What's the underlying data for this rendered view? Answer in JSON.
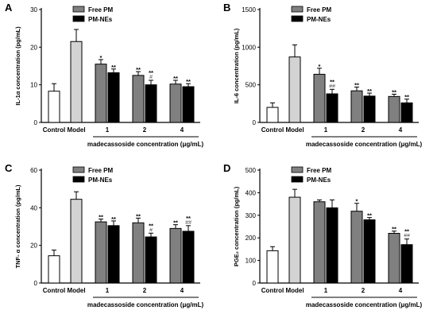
{
  "figure": {
    "background": "#ffffff"
  },
  "colors": {
    "control": "#ffffff",
    "model": "#d3d3d3",
    "free_pm": "#808080",
    "pm_nes": "#000000",
    "axis": "#000000",
    "hash": "#555555"
  },
  "legend": {
    "items": [
      "Free PM",
      "PM-NEs"
    ],
    "placement": "top-left"
  },
  "chart_data": [
    {
      "panel": "A",
      "type": "bar",
      "ylabel": "IL-1α concentration (pg/mL)",
      "xlabel": "madecassoside concentration (μg/mL)",
      "ylim": [
        0,
        30
      ],
      "yticks": [
        0,
        10,
        20,
        30
      ],
      "single": [
        {
          "label": "Control",
          "value": 8.3,
          "err": 2.0,
          "fill": "control"
        },
        {
          "label": "Model",
          "value": 21.5,
          "err": 3.2,
          "fill": "model"
        }
      ],
      "groups": [
        {
          "label": "1",
          "series": [
            {
              "name": "Free PM",
              "value": 15.5,
              "err": 1.2,
              "sig": "*",
              "hash": ""
            },
            {
              "name": "PM-NEs",
              "value": 13.2,
              "err": 1.0,
              "sig": "**",
              "hash": ""
            }
          ]
        },
        {
          "label": "2",
          "series": [
            {
              "name": "Free PM",
              "value": 12.5,
              "err": 1.0,
              "sig": "**",
              "hash": ""
            },
            {
              "name": "PM-NEs",
              "value": 10.0,
              "err": 1.2,
              "sig": "**",
              "hash": "#"
            }
          ]
        },
        {
          "label": "4",
          "series": [
            {
              "name": "Free PM",
              "value": 10.2,
              "err": 1.0,
              "sig": "**",
              "hash": ""
            },
            {
              "name": "PM-NEs",
              "value": 9.5,
              "err": 0.8,
              "sig": "**",
              "hash": ""
            }
          ]
        }
      ]
    },
    {
      "panel": "B",
      "type": "bar",
      "ylabel": "IL-6 concentration (pg/mL)",
      "xlabel": "madecassoside concentration (μg/mL)",
      "ylim": [
        0,
        1500
      ],
      "yticks": [
        0,
        500,
        1000,
        1500
      ],
      "single": [
        {
          "label": "Control",
          "value": 200,
          "err": 60,
          "fill": "control"
        },
        {
          "label": "Model",
          "value": 870,
          "err": 160,
          "fill": "model"
        }
      ],
      "groups": [
        {
          "label": "1",
          "series": [
            {
              "name": "Free PM",
              "value": 640,
              "err": 80,
              "sig": "*",
              "hash": ""
            },
            {
              "name": "PM-NEs",
              "value": 380,
              "err": 60,
              "sig": "**",
              "hash": "##"
            }
          ]
        },
        {
          "label": "2",
          "series": [
            {
              "name": "Free PM",
              "value": 420,
              "err": 50,
              "sig": "**",
              "hash": ""
            },
            {
              "name": "PM-NEs",
              "value": 350,
              "err": 40,
              "sig": "**",
              "hash": ""
            }
          ]
        },
        {
          "label": "4",
          "series": [
            {
              "name": "Free PM",
              "value": 345,
              "err": 30,
              "sig": "**",
              "hash": ""
            },
            {
              "name": "PM-NEs",
              "value": 260,
              "err": 50,
              "sig": "**",
              "hash": ""
            }
          ]
        }
      ]
    },
    {
      "panel": "C",
      "type": "bar",
      "ylabel": "TNF- α concentration (pg/mL)",
      "xlabel": "madecassoside concentration (μg/mL)",
      "ylim": [
        0,
        60
      ],
      "yticks": [
        0,
        20,
        40,
        60
      ],
      "single": [
        {
          "label": "Control",
          "value": 14.5,
          "err": 3.0,
          "fill": "control"
        },
        {
          "label": "Model",
          "value": 44.5,
          "err": 4.0,
          "fill": "model"
        }
      ],
      "groups": [
        {
          "label": "1",
          "series": [
            {
              "name": "Free PM",
              "value": 32.5,
              "err": 1.5,
              "sig": "**",
              "hash": ""
            },
            {
              "name": "PM-NEs",
              "value": 30.5,
              "err": 2.5,
              "sig": "**",
              "hash": ""
            }
          ]
        },
        {
          "label": "2",
          "series": [
            {
              "name": "Free PM",
              "value": 32.0,
              "err": 2.5,
              "sig": "**",
              "hash": ""
            },
            {
              "name": "PM-NEs",
              "value": 24.5,
              "err": 2.0,
              "sig": "**",
              "hash": "#"
            }
          ]
        },
        {
          "label": "4",
          "series": [
            {
              "name": "Free PM",
              "value": 29.0,
              "err": 2.0,
              "sig": "**",
              "hash": ""
            },
            {
              "name": "PM-NEs",
              "value": 27.5,
              "err": 3.0,
              "sig": "**",
              "hash": "##"
            }
          ]
        }
      ]
    },
    {
      "panel": "D",
      "type": "bar",
      "ylabel": "PGE₂ concentration (pg/mL)",
      "xlabel": "madecassoside concentration (μg/mL)",
      "ylim": [
        0,
        500
      ],
      "yticks": [
        0,
        100,
        200,
        300,
        400,
        500
      ],
      "single": [
        {
          "label": "Control",
          "value": 143,
          "err": 18,
          "fill": "control"
        },
        {
          "label": "Model",
          "value": 380,
          "err": 35,
          "fill": "model"
        }
      ],
      "groups": [
        {
          "label": "1",
          "series": [
            {
              "name": "Free PM",
              "value": 360,
              "err": 8,
              "sig": "",
              "hash": ""
            },
            {
              "name": "PM-NEs",
              "value": 333,
              "err": 35,
              "sig": "",
              "hash": ""
            }
          ]
        },
        {
          "label": "2",
          "series": [
            {
              "name": "Free PM",
              "value": 318,
              "err": 35,
              "sig": "*",
              "hash": ""
            },
            {
              "name": "PM-NEs",
              "value": 280,
              "err": 10,
              "sig": "**",
              "hash": ""
            }
          ]
        },
        {
          "label": "4",
          "series": [
            {
              "name": "Free PM",
              "value": 220,
              "err": 10,
              "sig": "**",
              "hash": ""
            },
            {
              "name": "PM-NEs",
              "value": 170,
              "err": 25,
              "sig": "**",
              "hash": "##"
            }
          ]
        }
      ]
    }
  ]
}
